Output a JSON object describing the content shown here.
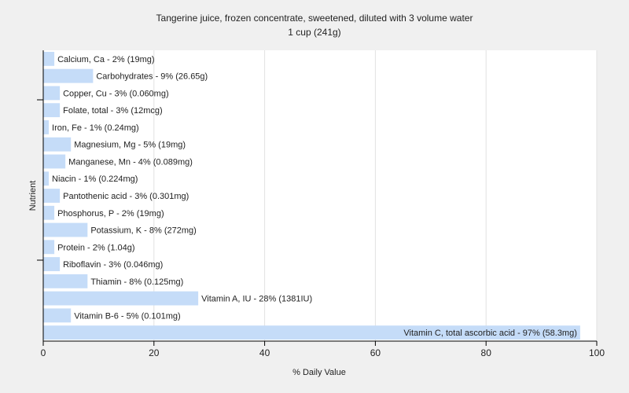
{
  "chart_data": {
    "type": "bar",
    "orientation": "horizontal",
    "title": "Tangerine juice, frozen concentrate, sweetened, diluted with 3 volume water",
    "subtitle": "1 cup (241g)",
    "xlabel": "% Daily Value",
    "ylabel": "Nutrient",
    "xlim": [
      0,
      100
    ],
    "xticks": [
      0,
      20,
      40,
      60,
      80,
      100
    ],
    "grid": true,
    "bar_color": "#c5dcf8",
    "categories": [
      "Calcium, Ca",
      "Carbohydrates",
      "Copper, Cu",
      "Folate, total",
      "Iron, Fe",
      "Magnesium, Mg",
      "Manganese, Mn",
      "Niacin",
      "Pantothenic acid",
      "Phosphorus, P",
      "Potassium, K",
      "Protein",
      "Riboflavin",
      "Thiamin",
      "Vitamin A, IU",
      "Vitamin B-6",
      "Vitamin C, total ascorbic acid"
    ],
    "values": [
      2,
      9,
      3,
      3,
      1,
      5,
      4,
      1,
      3,
      2,
      8,
      2,
      3,
      8,
      28,
      5,
      97
    ],
    "labels": [
      "Calcium, Ca - 2% (19mg)",
      "Carbohydrates - 9% (26.65g)",
      "Copper, Cu - 3% (0.060mg)",
      "Folate, total - 3% (12mcg)",
      "Iron, Fe - 1% (0.24mg)",
      "Magnesium, Mg - 5% (19mg)",
      "Manganese, Mn - 4% (0.089mg)",
      "Niacin - 1% (0.224mg)",
      "Pantothenic acid - 3% (0.301mg)",
      "Phosphorus, P - 2% (19mg)",
      "Potassium, K - 8% (272mg)",
      "Protein - 2% (1.04g)",
      "Riboflavin - 3% (0.046mg)",
      "Thiamin - 8% (0.125mg)",
      "Vitamin A, IU - 28% (1381IU)",
      "Vitamin B-6 - 5% (0.101mg)",
      "Vitamin C, total ascorbic acid - 97% (58.3mg)"
    ]
  }
}
